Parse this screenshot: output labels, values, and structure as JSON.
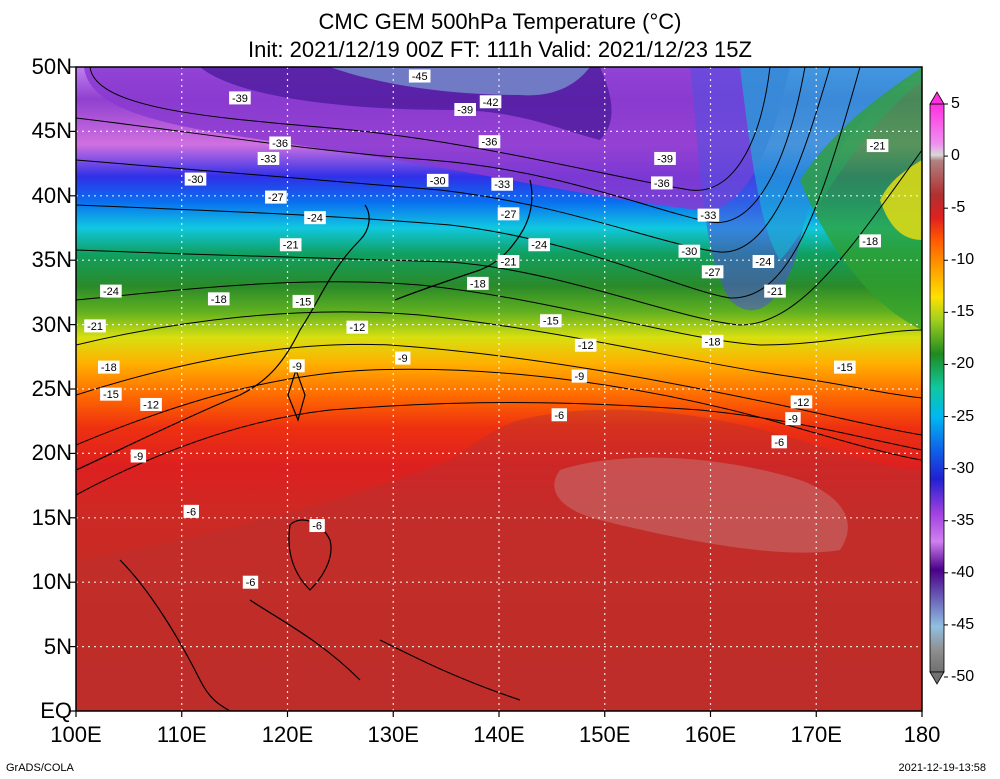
{
  "title": {
    "line1": "CMC GEM 500hPa Temperature (°C)",
    "line2": "Init: 2021/12/19 00Z  FT: 111h  Valid: 2021/12/23 15Z"
  },
  "map": {
    "lon_range": [
      100,
      180
    ],
    "lat_range": [
      0,
      50
    ],
    "x_ticks": [
      "100E",
      "110E",
      "120E",
      "130E",
      "140E",
      "150E",
      "160E",
      "170E",
      "180"
    ],
    "y_ticks": [
      "EQ",
      "5N",
      "10N",
      "15N",
      "20N",
      "25N",
      "30N",
      "35N",
      "40N",
      "45N",
      "50N"
    ],
    "gridlines": "dotted",
    "contour_interval": 3
  },
  "colorbar": {
    "labels": [
      "5",
      "0",
      "-5",
      "-10",
      "-15",
      "-20",
      "-25",
      "-30",
      "-35",
      "-40",
      "-45",
      "-50"
    ],
    "range": [
      -50,
      5
    ],
    "colors": [
      "#ff2ad4",
      "#cdcdcd",
      "#8b3a3a",
      "#dd2222",
      "#ff9a00",
      "#ffe400",
      "#2e8b2e",
      "#00e0d0",
      "#1e28e0",
      "#c050e0",
      "#4a0080",
      "#80b0d0",
      "#7a7a7a"
    ]
  },
  "contour_labels": [
    {
      "text": "-45",
      "lon": 132.5,
      "lat": 49.3
    },
    {
      "text": "-39",
      "lon": 115.5,
      "lat": 47.6
    },
    {
      "text": "-39",
      "lon": 136.8,
      "lat": 46.7
    },
    {
      "text": "-42",
      "lon": 139.2,
      "lat": 47.3
    },
    {
      "text": "-36",
      "lon": 119.3,
      "lat": 44.1
    },
    {
      "text": "-36",
      "lon": 139.1,
      "lat": 44.2
    },
    {
      "text": "-39",
      "lon": 155.7,
      "lat": 42.9
    },
    {
      "text": "-21",
      "lon": 175.8,
      "lat": 43.9
    },
    {
      "text": "-33",
      "lon": 118.2,
      "lat": 42.9
    },
    {
      "text": "-30",
      "lon": 111.3,
      "lat": 41.3
    },
    {
      "text": "-30",
      "lon": 134.2,
      "lat": 41.2
    },
    {
      "text": "-33",
      "lon": 140.3,
      "lat": 40.9
    },
    {
      "text": "-36",
      "lon": 155.4,
      "lat": 41.0
    },
    {
      "text": "-27",
      "lon": 118.9,
      "lat": 39.9
    },
    {
      "text": "-27",
      "lon": 140.9,
      "lat": 38.6
    },
    {
      "text": "-33",
      "lon": 159.8,
      "lat": 38.5
    },
    {
      "text": "-24",
      "lon": 122.6,
      "lat": 38.3
    },
    {
      "text": "-21",
      "lon": 120.3,
      "lat": 36.2
    },
    {
      "text": "-24",
      "lon": 143.8,
      "lat": 36.2
    },
    {
      "text": "-30",
      "lon": 158.0,
      "lat": 35.7
    },
    {
      "text": "-18",
      "lon": 175.1,
      "lat": 36.5
    },
    {
      "text": "-21",
      "lon": 140.9,
      "lat": 34.9
    },
    {
      "text": "-27",
      "lon": 160.2,
      "lat": 34.1
    },
    {
      "text": "-24",
      "lon": 165.0,
      "lat": 34.9
    },
    {
      "text": "-18",
      "lon": 138.0,
      "lat": 33.2
    },
    {
      "text": "-24",
      "lon": 103.3,
      "lat": 32.6
    },
    {
      "text": "-21",
      "lon": 166.1,
      "lat": 32.6
    },
    {
      "text": "-18",
      "lon": 113.5,
      "lat": 32.0
    },
    {
      "text": "-15",
      "lon": 121.5,
      "lat": 31.8
    },
    {
      "text": "-15",
      "lon": 144.9,
      "lat": 30.3
    },
    {
      "text": "-21",
      "lon": 101.8,
      "lat": 29.9
    },
    {
      "text": "-12",
      "lon": 126.6,
      "lat": 29.8
    },
    {
      "text": "-12",
      "lon": 148.2,
      "lat": 28.4
    },
    {
      "text": "-18",
      "lon": 160.2,
      "lat": 28.7
    },
    {
      "text": "-9",
      "lon": 130.9,
      "lat": 27.4
    },
    {
      "text": "-18",
      "lon": 103.1,
      "lat": 26.7
    },
    {
      "text": "-9",
      "lon": 120.9,
      "lat": 26.8
    },
    {
      "text": "-15",
      "lon": 172.7,
      "lat": 26.7
    },
    {
      "text": "-9",
      "lon": 147.6,
      "lat": 26.0
    },
    {
      "text": "-15",
      "lon": 103.3,
      "lat": 24.6
    },
    {
      "text": "-12",
      "lon": 107.1,
      "lat": 23.8
    },
    {
      "text": "-12",
      "lon": 168.6,
      "lat": 24.0
    },
    {
      "text": "-6",
      "lon": 145.7,
      "lat": 23.0
    },
    {
      "text": "-9",
      "lon": 167.8,
      "lat": 22.7
    },
    {
      "text": "-6",
      "lon": 166.5,
      "lat": 20.9
    },
    {
      "text": "-9",
      "lon": 105.9,
      "lat": 19.8
    },
    {
      "text": "-6",
      "lon": 110.9,
      "lat": 15.5
    },
    {
      "text": "-6",
      "lon": 122.8,
      "lat": 14.4
    },
    {
      "text": "-6",
      "lon": 116.5,
      "lat": 10.0
    }
  ],
  "footer": {
    "credit": "GrADS/COLA",
    "timestamp": "2021-12-19-13:58"
  }
}
